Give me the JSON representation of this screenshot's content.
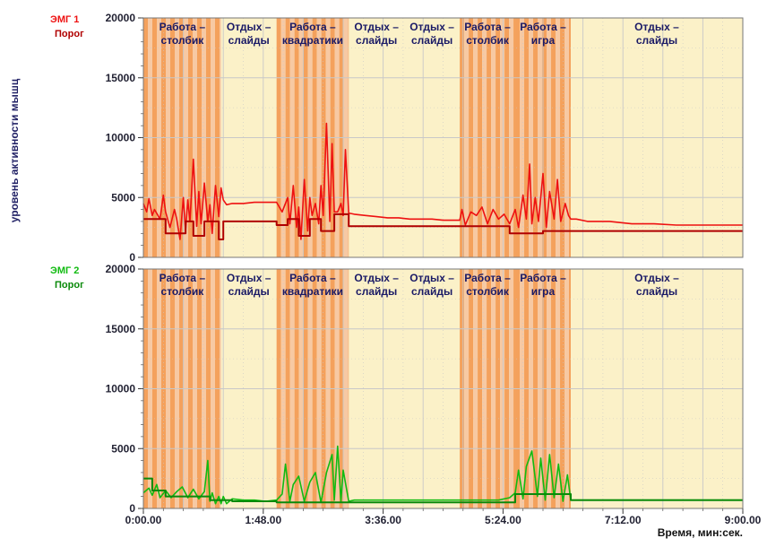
{
  "ylabel": "уровень активности мышц",
  "xlabel": "Время, мин:сек.",
  "colors": {
    "plot_bg": "#fbf1c8",
    "work_stripe_orange": "#f4a15c",
    "work_stripe_light": "#f7c9a3",
    "grid": "#c8c8c8",
    "emg1": "#ee1111",
    "emg1_threshold": "#b00000",
    "emg2": "#11bb11",
    "emg2_threshold": "#0a8a0a",
    "axis_text": "#222233",
    "period_text": "#1a1a66"
  },
  "chart_data": [
    {
      "type": "line",
      "panel": "top",
      "legend": [
        "ЭМГ 1",
        "Порог"
      ],
      "ylim": [
        0,
        20000
      ],
      "xlim": [
        0,
        540
      ],
      "y_ticks": [
        0,
        5000,
        10000,
        15000,
        20000
      ],
      "y_tick_labels": [
        "0",
        "5000",
        "10000",
        "15000",
        "20000"
      ],
      "grid": true,
      "periods": [
        {
          "label": [
            "Работа –",
            "столбик"
          ],
          "start": 0,
          "end": 70,
          "kind": "work"
        },
        {
          "label": [
            "Отдых –",
            "слайды"
          ],
          "start": 70,
          "end": 120,
          "kind": "rest"
        },
        {
          "label": [
            "Работа –",
            "квадратики"
          ],
          "start": 120,
          "end": 185,
          "kind": "work"
        },
        {
          "label": [
            "Отдых –",
            "слайды"
          ],
          "start": 185,
          "end": 235,
          "kind": "rest"
        },
        {
          "label": [
            "Отдых –",
            "слайды"
          ],
          "start": 235,
          "end": 285,
          "kind": "rest"
        },
        {
          "label": [
            "Работа –",
            "столбик"
          ],
          "start": 285,
          "end": 335,
          "kind": "work"
        },
        {
          "label": [
            "Работа –",
            "игра"
          ],
          "start": 335,
          "end": 385,
          "kind": "work"
        },
        {
          "label": [
            "Отдых –",
            "слайды"
          ],
          "start": 385,
          "end": 540,
          "kind": "rest"
        }
      ],
      "series": [
        {
          "name": "ЭМГ 1",
          "x": [
            0,
            3,
            5,
            8,
            10,
            15,
            18,
            20,
            24,
            28,
            30,
            33,
            36,
            38,
            40,
            42,
            45,
            48,
            50,
            52,
            55,
            58,
            60,
            62,
            65,
            68,
            70,
            72,
            75,
            80,
            90,
            100,
            110,
            120,
            125,
            130,
            132,
            135,
            138,
            140,
            142,
            145,
            148,
            150,
            152,
            155,
            158,
            160,
            162,
            165,
            168,
            170,
            172,
            175,
            178,
            180,
            182,
            185,
            190,
            200,
            210,
            220,
            230,
            240,
            250,
            260,
            270,
            280,
            285,
            287,
            290,
            295,
            300,
            305,
            310,
            315,
            320,
            325,
            330,
            335,
            338,
            342,
            345,
            348,
            350,
            353,
            356,
            360,
            363,
            366,
            370,
            373,
            376,
            380,
            383,
            385,
            390,
            400,
            420,
            440,
            460,
            480,
            500,
            520,
            540
          ],
          "values": [
            4500,
            3800,
            4900,
            3500,
            4000,
            3200,
            5200,
            3800,
            2500,
            4000,
            3200,
            1500,
            5000,
            2200,
            4800,
            3000,
            8200,
            2600,
            5500,
            2800,
            6200,
            3000,
            4400,
            2000,
            6000,
            3400,
            5800,
            4800,
            4400,
            4500,
            4500,
            4600,
            4600,
            4600,
            3800,
            5000,
            2800,
            6000,
            2500,
            4200,
            1500,
            6500,
            2200,
            5000,
            3500,
            4500,
            2800,
            6000,
            3500,
            11200,
            3000,
            9500,
            3800,
            3800,
            4500,
            3500,
            9000,
            3700,
            3600,
            3500,
            3400,
            3300,
            3300,
            3200,
            3200,
            3200,
            3100,
            3100,
            3100,
            4000,
            2700,
            3800,
            3500,
            4200,
            2800,
            4000,
            3200,
            3600,
            2800,
            4000,
            2500,
            5200,
            3200,
            7800,
            2800,
            5000,
            3000,
            7000,
            2500,
            5500,
            3200,
            6500,
            3000,
            4500,
            3500,
            3200,
            3200,
            3000,
            3000,
            2800,
            2800,
            2700,
            2700,
            2700,
            2700
          ]
        },
        {
          "name": "Порог",
          "x": [
            0,
            20,
            20,
            38,
            38,
            45,
            45,
            55,
            55,
            68,
            68,
            72,
            72,
            120,
            120,
            130,
            130,
            140,
            140,
            150,
            150,
            160,
            160,
            172,
            172,
            185,
            185,
            285,
            285,
            330,
            330,
            360,
            360,
            385,
            385,
            540
          ],
          "values": [
            3200,
            3200,
            2000,
            2000,
            3000,
            3000,
            1800,
            1800,
            3000,
            3000,
            1500,
            1500,
            3000,
            3000,
            2700,
            2700,
            3200,
            3200,
            1800,
            1800,
            3200,
            3200,
            2200,
            2200,
            3600,
            3600,
            2600,
            2600,
            2600,
            2600,
            2000,
            2000,
            2200,
            2200,
            2200,
            2200
          ]
        }
      ]
    },
    {
      "type": "line",
      "panel": "bottom",
      "legend": [
        "ЭМГ 2",
        "Порог"
      ],
      "ylim": [
        0,
        20000
      ],
      "xlim": [
        0,
        540
      ],
      "y_ticks": [
        0,
        5000,
        10000,
        15000,
        20000
      ],
      "y_tick_labels": [
        "0",
        "5000",
        "10000",
        "15000",
        "20000"
      ],
      "x_ticks": [
        0,
        108,
        216,
        324,
        432,
        540
      ],
      "x_tick_labels": [
        "0:00.00",
        "1:48.00",
        "3:36.00",
        "5:24.00",
        "7:12.00",
        "9:00.00"
      ],
      "grid": true,
      "periods": [
        {
          "label": [
            "Работа –",
            "столбик"
          ],
          "start": 0,
          "end": 70,
          "kind": "work"
        },
        {
          "label": [
            "Отдых –",
            "слайды"
          ],
          "start": 70,
          "end": 120,
          "kind": "rest"
        },
        {
          "label": [
            "Работа –",
            "квадратики"
          ],
          "start": 120,
          "end": 185,
          "kind": "work"
        },
        {
          "label": [
            "Отдых –",
            "слайды"
          ],
          "start": 185,
          "end": 235,
          "kind": "rest"
        },
        {
          "label": [
            "Отдых –",
            "слайды"
          ],
          "start": 235,
          "end": 285,
          "kind": "rest"
        },
        {
          "label": [
            "Работа –",
            "столбик"
          ],
          "start": 285,
          "end": 335,
          "kind": "work"
        },
        {
          "label": [
            "Работа –",
            "игра"
          ],
          "start": 335,
          "end": 385,
          "kind": "work"
        },
        {
          "label": [
            "Отдых –",
            "слайды"
          ],
          "start": 385,
          "end": 540,
          "kind": "rest"
        }
      ],
      "series": [
        {
          "name": "ЭМГ 2",
          "x": [
            0,
            5,
            8,
            12,
            15,
            20,
            25,
            30,
            35,
            40,
            45,
            50,
            55,
            58,
            60,
            62,
            65,
            68,
            70,
            72,
            75,
            80,
            90,
            100,
            110,
            120,
            125,
            128,
            132,
            135,
            140,
            145,
            150,
            155,
            160,
            165,
            170,
            172,
            175,
            178,
            180,
            185,
            190,
            200,
            210,
            220,
            240,
            260,
            280,
            290,
            300,
            310,
            320,
            330,
            335,
            338,
            342,
            345,
            350,
            355,
            358,
            362,
            366,
            370,
            374,
            378,
            382,
            385,
            390,
            400,
            420,
            440,
            460,
            480,
            500,
            520,
            540
          ],
          "values": [
            1300,
            1700,
            1100,
            2000,
            900,
            1500,
            900,
            1400,
            1800,
            900,
            1600,
            800,
            1400,
            4000,
            600,
            1300,
            400,
            1000,
            400,
            1000,
            400,
            800,
            700,
            700,
            600,
            700,
            1200,
            3700,
            600,
            2000,
            2700,
            600,
            2200,
            3000,
            500,
            3000,
            4500,
            700,
            5200,
            600,
            3200,
            600,
            700,
            700,
            700,
            700,
            700,
            700,
            700,
            700,
            700,
            700,
            700,
            900,
            1300,
            3200,
            800,
            3500,
            4800,
            1000,
            4200,
            700,
            4500,
            900,
            3700,
            600,
            2800,
            700,
            700,
            700,
            700,
            700,
            700,
            700,
            700,
            700,
            700
          ]
        },
        {
          "name": "Порог",
          "x": [
            0,
            8,
            8,
            20,
            20,
            60,
            60,
            80,
            80,
            120,
            120,
            185,
            185,
            335,
            335,
            385,
            385,
            540
          ],
          "values": [
            2500,
            2500,
            1500,
            1500,
            1000,
            1000,
            700,
            700,
            600,
            600,
            500,
            500,
            500,
            500,
            1200,
            1200,
            700,
            700
          ]
        }
      ]
    }
  ]
}
